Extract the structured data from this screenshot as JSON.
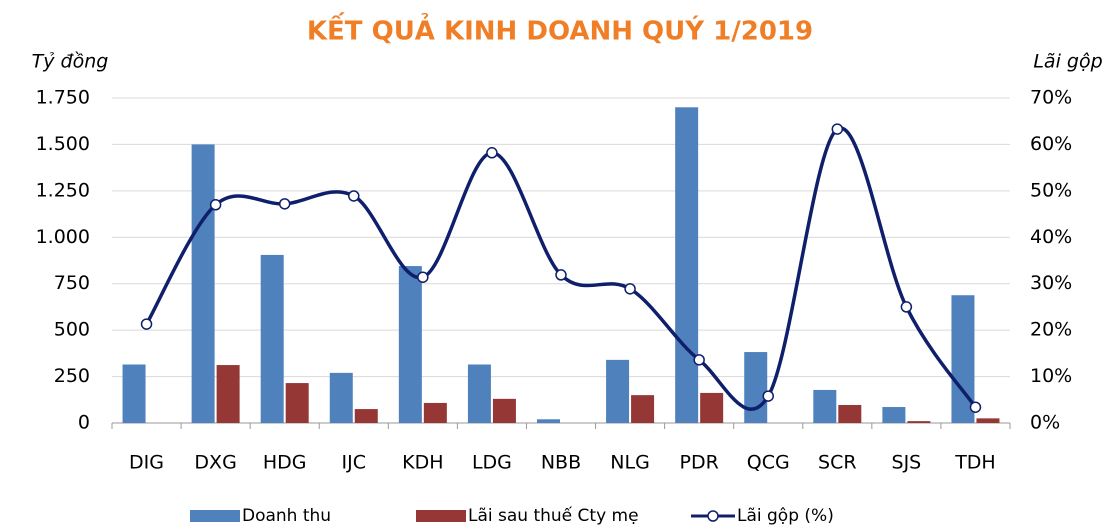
{
  "chart_data": {
    "type": "bar_line",
    "title": "KẾT QUẢ KINH DOANH QUÝ 1/2019",
    "y_label": "Tỷ đồng",
    "y2_label": "Lãi gộp",
    "categories": [
      "DIG",
      "DXG",
      "HDG",
      "IJC",
      "KDH",
      "LDG",
      "NBB",
      "NLG",
      "PDR",
      "QCG",
      "SCR",
      "SJS",
      "TDH"
    ],
    "series": [
      {
        "name": "Doanh thu",
        "color": "#4f81bd",
        "type": "bar",
        "values": [
          315,
          1500,
          905,
          270,
          845,
          315,
          20,
          340,
          1700,
          382,
          178,
          86,
          688
        ]
      },
      {
        "name": "Lãi sau thuế Cty mẹ",
        "color": "#953735",
        "type": "bar",
        "values": [
          0,
          312,
          215,
          75,
          108,
          130,
          0,
          150,
          162,
          0,
          97,
          10,
          25
        ]
      },
      {
        "name": "Lãi gộp (%)",
        "color": "#0f1f6b",
        "type": "line",
        "axis": "y2",
        "values": [
          21.3,
          47,
          47.2,
          48.9,
          31.4,
          58.2,
          31.9,
          28.9,
          13.6,
          5.8,
          63.3,
          25,
          3.4
        ]
      }
    ],
    "ylim": [
      0,
      1750
    ],
    "yticks": [
      0,
      250,
      500,
      750,
      {
        "value": 1000,
        "label": "1.000"
      },
      {
        "value": 1250,
        "label": "1.250"
      },
      {
        "value": 1500,
        "label": "1.500"
      },
      {
        "value": 1750,
        "label": "1.750"
      }
    ],
    "y2lim": [
      0,
      70
    ],
    "y2ticks": [
      {
        "value": 0,
        "label": "0%"
      },
      {
        "value": 10,
        "label": "10%"
      },
      {
        "value": 20,
        "label": "20%"
      },
      {
        "value": 30,
        "label": "30%"
      },
      {
        "value": 40,
        "label": "40%"
      },
      {
        "value": 50,
        "label": "50%"
      },
      {
        "value": 60,
        "label": "60%"
      },
      {
        "value": 70,
        "label": "70%"
      }
    ],
    "grid": true
  }
}
